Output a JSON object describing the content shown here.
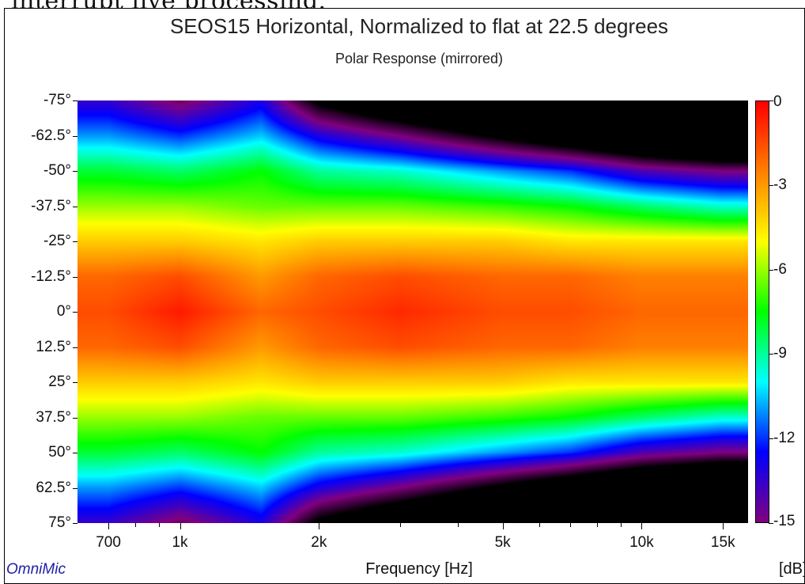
{
  "caption_fragment": "interrupt live processing.",
  "brand": "OmniMic",
  "unit_label": "[dB]",
  "chart_data": {
    "type": "heatmap",
    "title": "SEOS15 Horizontal, Normalized to flat at 22.5 degrees",
    "subtitle": "Polar Response (mirrored)",
    "xlabel": "Frequency [Hz]",
    "ylabel": "",
    "x_scale": "log",
    "xlim": [
      600,
      17000
    ],
    "x_ticks": [
      {
        "value": 700,
        "label": "700"
      },
      {
        "value": 1000,
        "label": "1k"
      },
      {
        "value": 2000,
        "label": "2k"
      },
      {
        "value": 5000,
        "label": "5k"
      },
      {
        "value": 10000,
        "label": "10k"
      },
      {
        "value": 15000,
        "label": "15k"
      }
    ],
    "x_minor_ticks": [
      800,
      900,
      3000,
      4000,
      6000,
      7000,
      8000,
      9000
    ],
    "ylim": [
      -75,
      75
    ],
    "y_ticks": [
      "-75°",
      "-62.5°",
      "-50°",
      "-37.5°",
      "-25°",
      "-12.5°",
      "0°",
      "12.5°",
      "25°",
      "37.5°",
      "50°",
      "62.5°",
      "75°"
    ],
    "y_values": [
      -75,
      -62.5,
      -50,
      -37.5,
      -25,
      -12.5,
      0,
      12.5,
      25,
      37.5,
      50,
      62.5,
      75
    ],
    "colorbar": {
      "label": "[dB]",
      "range": [
        -15,
        0
      ],
      "ticks": [
        "0",
        "-3",
        "-6",
        "-9",
        "-12",
        "-15"
      ],
      "tick_values": [
        0,
        -3,
        -6,
        -9,
        -12,
        -15
      ],
      "colors": [
        "#ff0000",
        "#ff8000",
        "#ffff00",
        "#00ff00",
        "#00ffff",
        "#0000ff",
        "#800080"
      ]
    },
    "frequencies_hz": [
      700,
      1000,
      1500,
      2000,
      3000,
      5000,
      7000,
      10000,
      15000
    ],
    "angles_deg": [
      0,
      12.5,
      25,
      37.5,
      50,
      62.5,
      75
    ],
    "values_db": [
      [
        -1.5,
        -0.5,
        -2.0,
        -1.5,
        -0.8,
        -1.5,
        -1.5,
        -2.0,
        -2.0
      ],
      [
        -2.0,
        -1.5,
        -3.0,
        -2.0,
        -1.5,
        -2.0,
        -2.0,
        -2.5,
        -2.5
      ],
      [
        -4.0,
        -4.0,
        -4.5,
        -4.0,
        -4.0,
        -4.0,
        -4.5,
        -4.5,
        -4.5
      ],
      [
        -6.0,
        -6.0,
        -6.5,
        -6.5,
        -6.5,
        -7.0,
        -7.5,
        -8.5,
        -9.5
      ],
      [
        -8.0,
        -8.5,
        -7.5,
        -9.0,
        -9.5,
        -11.0,
        -12.0,
        -14.0,
        -15.0
      ],
      [
        -11.0,
        -12.0,
        -10.5,
        -13.0,
        -15.0,
        -18.0,
        -20.0,
        -22.0,
        -24.0
      ],
      [
        -13.5,
        -15.5,
        -13.0,
        -18.0,
        -21.0,
        -24.0,
        -26.0,
        -28.0,
        -30.0
      ]
    ],
    "grid": false,
    "legend": "colorbar-right",
    "symmetry": "mirrored about 0°"
  }
}
